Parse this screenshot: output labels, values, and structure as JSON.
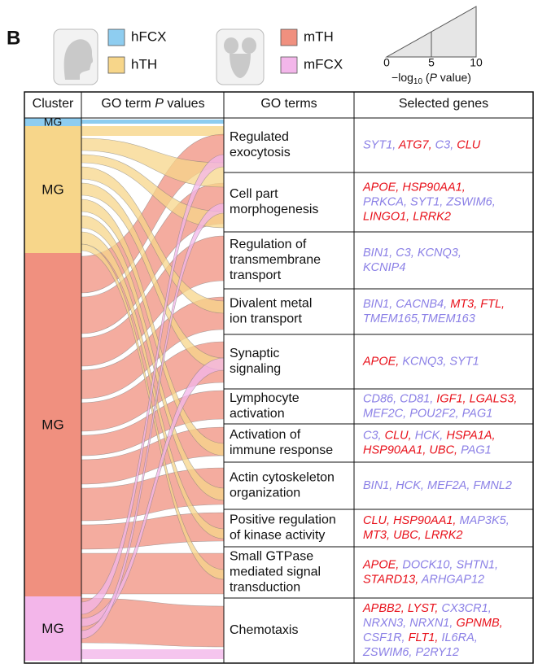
{
  "panel_label": "B",
  "legend": [
    {
      "name": "hFCX",
      "color": "#8ecdf0"
    },
    {
      "name": "hTH",
      "color": "#f7d68a"
    },
    {
      "name": "mTH",
      "color": "#f0907f"
    },
    {
      "name": "mFCX",
      "color": "#f3b6ea"
    }
  ],
  "scale": {
    "ticks": [
      0,
      5,
      10
    ],
    "label_parts": [
      "−log",
      "10",
      " (",
      "P",
      " value)"
    ]
  },
  "header": {
    "cluster": "Cluster",
    "p_values": [
      "GO term ",
      "P",
      " values"
    ],
    "go_terms": "GO terms",
    "genes": "Selected genes"
  },
  "clusters": [
    {
      "label": "MG",
      "color": "#8ecdf0"
    },
    {
      "label": "MG",
      "color": "#f7d68a"
    },
    {
      "label": "MG",
      "color": "#f0907f"
    },
    {
      "label": "MG",
      "color": "#f3b6ea"
    }
  ],
  "rows": [
    {
      "term": [
        "Regulated",
        "exocytosis"
      ],
      "genes": [
        [
          {
            "text": "SYT1,",
            "color": "#8b80e6"
          },
          {
            "text": "ATG7,",
            "color": "#e8101a"
          },
          {
            "text": "C3,",
            "color": "#8b80e6"
          },
          {
            "text": "CLU",
            "color": "#e8101a"
          }
        ]
      ]
    },
    {
      "term": [
        "Cell part",
        "morphogenesis"
      ],
      "genes": [
        [
          {
            "text": "APOE,",
            "color": "#e8101a"
          },
          {
            "text": "HSP90AA1,",
            "color": "#e8101a"
          }
        ],
        [
          {
            "text": "PRKCA,",
            "color": "#8b80e6"
          },
          {
            "text": "SYT1,",
            "color": "#8b80e6"
          },
          {
            "text": "ZSWIM6,",
            "color": "#8b80e6"
          }
        ],
        [
          {
            "text": "LINGO1,",
            "color": "#e8101a"
          },
          {
            "text": "LRRK2",
            "color": "#e8101a"
          }
        ]
      ]
    },
    {
      "term": [
        "Regulation of",
        "transmembrane",
        "transport"
      ],
      "genes": [
        [
          {
            "text": "BIN1,",
            "color": "#8b80e6"
          },
          {
            "text": "C3,",
            "color": "#8b80e6"
          },
          {
            "text": "KCNQ3,",
            "color": "#8b80e6"
          }
        ],
        [
          {
            "text": "KCNIP4",
            "color": "#8b80e6"
          }
        ]
      ]
    },
    {
      "term": [
        "Divalent metal",
        "ion transport"
      ],
      "genes": [
        [
          {
            "text": "BIN1,",
            "color": "#8b80e6"
          },
          {
            "text": "CACNB4,",
            "color": "#8b80e6"
          },
          {
            "text": "MT3,",
            "color": "#e8101a"
          },
          {
            "text": "FTL,",
            "color": "#e8101a"
          }
        ],
        [
          {
            "text": "TMEM165,TMEM163",
            "color": "#8b80e6"
          }
        ]
      ]
    },
    {
      "term": [
        "Synaptic",
        "signaling"
      ],
      "genes": [
        [
          {
            "text": "APOE,",
            "color": "#e8101a"
          },
          {
            "text": "KCNQ3,",
            "color": "#8b80e6"
          },
          {
            "text": "SYT1",
            "color": "#8b80e6"
          }
        ]
      ]
    },
    {
      "term": [
        "Lymphocyte",
        "activation"
      ],
      "genes": [
        [
          {
            "text": "CD86,",
            "color": "#8b80e6"
          },
          {
            "text": "CD81,",
            "color": "#8b80e6"
          },
          {
            "text": "IGF1,",
            "color": "#e8101a"
          },
          {
            "text": "LGALS3,",
            "color": "#e8101a"
          }
        ],
        [
          {
            "text": "MEF2C,",
            "color": "#8b80e6"
          },
          {
            "text": "POU2F2,",
            "color": "#8b80e6"
          },
          {
            "text": "PAG1",
            "color": "#8b80e6"
          }
        ]
      ]
    },
    {
      "term": [
        "Activation of",
        "immune response"
      ],
      "genes": [
        [
          {
            "text": "C3,",
            "color": "#8b80e6"
          },
          {
            "text": "CLU,",
            "color": "#e8101a"
          },
          {
            "text": "HCK,",
            "color": "#8b80e6"
          },
          {
            "text": "HSPA1A,",
            "color": "#e8101a"
          }
        ],
        [
          {
            "text": "HSP90AA1,",
            "color": "#e8101a"
          },
          {
            "text": "UBC,",
            "color": "#e8101a"
          },
          {
            "text": "PAG1",
            "color": "#8b80e6"
          }
        ]
      ]
    },
    {
      "term": [
        "Actin cytoskeleton",
        "organization"
      ],
      "genes": [
        [
          {
            "text": "BIN1,",
            "color": "#8b80e6"
          },
          {
            "text": "HCK,",
            "color": "#8b80e6"
          },
          {
            "text": "MEF2A,",
            "color": "#8b80e6"
          },
          {
            "text": "FMNL2",
            "color": "#8b80e6"
          }
        ]
      ]
    },
    {
      "term": [
        "Positive regulation",
        "of kinase activity"
      ],
      "genes": [
        [
          {
            "text": "CLU,",
            "color": "#e8101a"
          },
          {
            "text": "HSP90AA1,",
            "color": "#e8101a"
          },
          {
            "text": "MAP3K5,",
            "color": "#8b80e6"
          }
        ],
        [
          {
            "text": "MT3,",
            "color": "#e8101a"
          },
          {
            "text": "UBC,",
            "color": "#e8101a"
          },
          {
            "text": "LRRK2",
            "color": "#e8101a"
          }
        ]
      ]
    },
    {
      "term": [
        "Small GTPase",
        "mediated signal",
        "transduction"
      ],
      "genes": [
        [
          {
            "text": "APOE,",
            "color": "#e8101a"
          },
          {
            "text": "DOCK10,",
            "color": "#8b80e6"
          },
          {
            "text": "SHTN1,",
            "color": "#8b80e6"
          }
        ],
        [
          {
            "text": "STARD13,",
            "color": "#e8101a"
          },
          {
            "text": "ARHGAP12",
            "color": "#8b80e6"
          }
        ]
      ]
    },
    {
      "term": [
        "Chemotaxis"
      ],
      "genes": [
        [
          {
            "text": "APBB2,",
            "color": "#e8101a"
          },
          {
            "text": "LYST,",
            "color": "#e8101a"
          },
          {
            "text": "CX3CR1,",
            "color": "#8b80e6"
          }
        ],
        [
          {
            "text": "NRXN3,",
            "color": "#8b80e6"
          },
          {
            "text": "NRXN1,",
            "color": "#8b80e6"
          },
          {
            "text": "GPNMB,",
            "color": "#e8101a"
          }
        ],
        [
          {
            "text": "CSF1R,",
            "color": "#8b80e6"
          },
          {
            "text": "FLT1,",
            "color": "#e8101a"
          },
          {
            "text": "IL6RA,",
            "color": "#8b80e6"
          }
        ],
        [
          {
            "text": "ZSWIM6,",
            "color": "#8b80e6"
          },
          {
            "text": "P2RY12",
            "color": "#8b80e6"
          }
        ]
      ]
    }
  ]
}
